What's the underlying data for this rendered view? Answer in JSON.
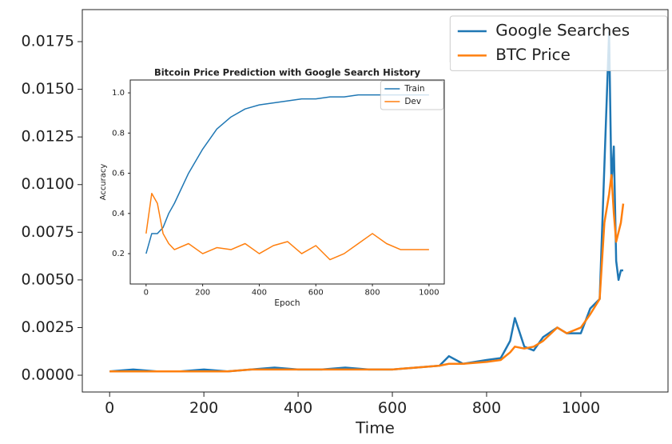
{
  "chart_data": [
    {
      "type": "line",
      "xlabel": "Time",
      "x": [
        0,
        50,
        100,
        150,
        200,
        250,
        300,
        350,
        400,
        450,
        500,
        550,
        600,
        650,
        700,
        720,
        750,
        800,
        830,
        850,
        860,
        880,
        900,
        920,
        950,
        970,
        1000,
        1020,
        1040,
        1050,
        1060,
        1065,
        1070,
        1075,
        1080,
        1085,
        1090
      ],
      "series": [
        {
          "name": "Google Searches",
          "color": "#1f77b4",
          "values": [
            0.0002,
            0.0003,
            0.0002,
            0.0002,
            0.0003,
            0.0002,
            0.0003,
            0.0004,
            0.0003,
            0.0003,
            0.0004,
            0.0003,
            0.0003,
            0.0004,
            0.0005,
            0.001,
            0.0006,
            0.0008,
            0.0009,
            0.0018,
            0.003,
            0.0015,
            0.0013,
            0.002,
            0.0025,
            0.0022,
            0.0022,
            0.0035,
            0.004,
            0.011,
            0.018,
            0.01,
            0.012,
            0.006,
            0.005,
            0.0055,
            0.0055
          ]
        },
        {
          "name": "BTC Price",
          "color": "#ff7f0e",
          "values": [
            0.0002,
            0.0002,
            0.0002,
            0.0002,
            0.0002,
            0.0002,
            0.0003,
            0.0003,
            0.0003,
            0.0003,
            0.0003,
            0.0003,
            0.0003,
            0.0004,
            0.0005,
            0.0006,
            0.0006,
            0.0007,
            0.0008,
            0.0012,
            0.0015,
            0.0014,
            0.0015,
            0.0018,
            0.0025,
            0.0022,
            0.0025,
            0.0032,
            0.004,
            0.008,
            0.0095,
            0.0105,
            0.0085,
            0.007,
            0.0075,
            0.008,
            0.009
          ]
        }
      ],
      "xlim": [
        -58,
        1185
      ],
      "ylim": [
        -0.00088,
        0.01918
      ],
      "xticks": [
        0,
        200,
        400,
        600,
        800,
        1000
      ],
      "yticks": [
        {
          "value": 0,
          "label": "0.0000"
        },
        {
          "value": 0.0025,
          "label": "0.0025"
        },
        {
          "value": 0.005,
          "label": "0.0050"
        },
        {
          "value": 0.0075,
          "label": "0.0075"
        },
        {
          "value": 0.01,
          "label": "0.0100"
        },
        {
          "value": 0.0125,
          "label": "0.0125"
        },
        {
          "value": 0.015,
          "label": "0.0150"
        },
        {
          "value": 0.0175,
          "label": "0.0175"
        }
      ],
      "legend": "upper right"
    },
    {
      "type": "line",
      "title": "Bitcoin Price Prediction with Google Search History",
      "xlabel": "Epoch",
      "ylabel": "Accuracy",
      "x": [
        0,
        20,
        40,
        60,
        80,
        100,
        150,
        200,
        250,
        300,
        350,
        400,
        450,
        500,
        550,
        600,
        650,
        700,
        750,
        800,
        850,
        900,
        950,
        1000
      ],
      "series": [
        {
          "name": "Train",
          "color": "#1f77b4",
          "values": [
            0.2,
            0.3,
            0.3,
            0.33,
            0.4,
            0.45,
            0.6,
            0.72,
            0.82,
            0.88,
            0.92,
            0.94,
            0.95,
            0.96,
            0.97,
            0.97,
            0.98,
            0.98,
            0.99,
            0.99,
            0.99,
            0.99,
            0.99,
            0.99
          ]
        },
        {
          "name": "Dev",
          "color": "#ff7f0e",
          "values": [
            0.3,
            0.5,
            0.45,
            0.3,
            0.25,
            0.22,
            0.25,
            0.2,
            0.23,
            0.22,
            0.25,
            0.2,
            0.24,
            0.26,
            0.2,
            0.24,
            0.17,
            0.2,
            0.25,
            0.3,
            0.25,
            0.22,
            0.22,
            0.22
          ]
        }
      ],
      "xlim": [
        -56,
        1054
      ],
      "ylim": [
        0.049,
        1.064
      ],
      "xticks": [
        0,
        200,
        400,
        600,
        800,
        1000
      ],
      "yticks": [
        0.2,
        0.4,
        0.6,
        0.8,
        {
          "value": 1,
          "label": "1.0"
        }
      ],
      "legend": "upper right"
    }
  ]
}
